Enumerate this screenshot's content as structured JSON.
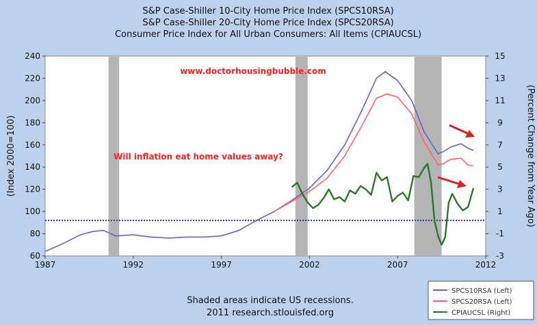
{
  "titles": [
    "S&P Case-Shiller 10-City Home Price Index (SPCS10RSA)",
    "S&P Case-Shiller 20-City Home Price Index (SPCS20RSA)",
    "Consumer Price Index for All Urban Consumers: All Items (CPIAUCSL)"
  ],
  "watermark": "www.doctorhousingbubble.com",
  "annotation": "Will inflation eat home values away?",
  "ylabel_left": "(Index 2000=100)",
  "ylabel_right": "(Percent Change from Year Ago)",
  "footer": [
    "Shaded areas indicate US recessions.",
    "2011 research.stlouisfed.org"
  ],
  "colors": {
    "spcs10": "#6464c8",
    "spcs20": "#ff6464",
    "cpi": "#287828",
    "recession": "#b4b4b4",
    "reference": "#3232c8",
    "arrow": "#e02020",
    "red_text": "#ff2020"
  },
  "chart_data": {
    "type": "line",
    "xlim": [
      1987,
      2012
    ],
    "ylim_left": [
      60,
      240
    ],
    "ylim_right": [
      -3,
      15
    ],
    "x_ticks": [
      "1987",
      "1992",
      "1997",
      "2002",
      "2007",
      "2012"
    ],
    "y_ticks_left": [
      "60",
      "80",
      "100",
      "120",
      "140",
      "160",
      "180",
      "200",
      "220",
      "240"
    ],
    "y_ticks_right": [
      "-3",
      "-1",
      "1",
      "3",
      "5",
      "7",
      "9",
      "11",
      "13",
      "15"
    ],
    "recessions": [
      [
        1990.6,
        1991.2
      ],
      [
        2001.2,
        2001.9
      ],
      [
        2007.95,
        2009.5
      ]
    ],
    "reference_line_left": 92,
    "legend_position": "bottom-right",
    "series": [
      {
        "name": "SPCS10RSA (Left)",
        "axis": "left",
        "x": [
          1987,
          1988,
          1989,
          1989.7,
          1990.3,
          1991,
          1992,
          1993,
          1994,
          1995,
          1996,
          1997,
          1998,
          1999,
          2000,
          2001,
          2002,
          2003,
          2004,
          2005,
          2005.8,
          2006.3,
          2007,
          2007.8,
          2008.5,
          2009.3,
          2009.6,
          2010,
          2010.6,
          2011,
          2011.3
        ],
        "values": [
          64,
          71,
          79,
          82,
          83,
          78,
          79,
          77,
          76,
          77,
          77,
          78,
          83,
          92,
          100,
          110,
          121,
          137,
          160,
          192,
          220,
          226,
          218,
          200,
          172,
          152,
          154,
          158,
          161,
          157,
          155
        ]
      },
      {
        "name": "SPCS20RSA (Left)",
        "axis": "left",
        "x": [
          2000,
          2001,
          2002,
          2003,
          2004,
          2005,
          2005.8,
          2006.4,
          2007,
          2007.8,
          2008.5,
          2009.3,
          2009.6,
          2010,
          2010.6,
          2011,
          2011.3
        ],
        "values": [
          100,
          109,
          118,
          130,
          150,
          178,
          202,
          206,
          203,
          188,
          163,
          142,
          143,
          147,
          148,
          142,
          141
        ]
      },
      {
        "name": "CPIAUCSL (Right)",
        "axis": "right",
        "x": [
          2001.0,
          2001.3,
          2001.6,
          2001.9,
          2002.2,
          2002.5,
          2002.8,
          2003.1,
          2003.4,
          2003.7,
          2004.0,
          2004.3,
          2004.6,
          2004.9,
          2005.2,
          2005.5,
          2005.8,
          2006.1,
          2006.4,
          2006.7,
          2007.0,
          2007.3,
          2007.6,
          2007.9,
          2008.2,
          2008.5,
          2008.7,
          2008.9,
          2009.1,
          2009.3,
          2009.5,
          2009.7,
          2009.9,
          2010.1,
          2010.4,
          2010.7,
          2011.0,
          2011.3
        ],
        "values": [
          3.2,
          3.6,
          2.6,
          1.8,
          1.3,
          1.6,
          2.2,
          3.0,
          2.1,
          2.3,
          1.9,
          2.9,
          2.6,
          3.3,
          3.0,
          2.5,
          4.5,
          3.8,
          4.1,
          1.9,
          2.4,
          2.7,
          2.0,
          4.2,
          4.1,
          4.9,
          5.3,
          3.6,
          0.1,
          -1.2,
          -2.0,
          -1.3,
          1.8,
          2.6,
          1.7,
          1.1,
          1.4,
          3.1
        ]
      }
    ]
  }
}
